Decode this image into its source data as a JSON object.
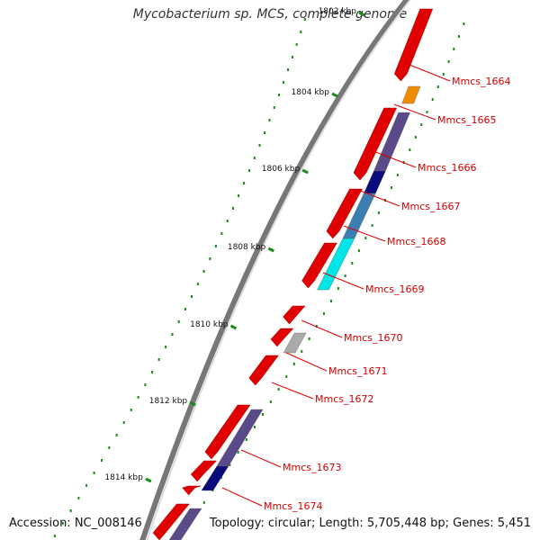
{
  "title": "Mycobacterium sp. MCS, complete genome",
  "footer": {
    "accession": "Accession: NC_008146",
    "summary": "Topology: circular; Length: 5,705,448 bp; Genes: 5,451"
  },
  "ruler": [
    {
      "label": "1802 kbp"
    },
    {
      "label": "1804 kbp"
    },
    {
      "label": "1806 kbp"
    },
    {
      "label": "1808 kbp"
    },
    {
      "label": "1810 kbp"
    },
    {
      "label": "1812 kbp"
    },
    {
      "label": "1814 kbp"
    }
  ],
  "genes": [
    {
      "label": "Mmcs_1664",
      "color": "#e00000",
      "label_color": "#d40000"
    },
    {
      "label": "Mmcs_1665",
      "color": "#f08c00",
      "label_color": "#d40000"
    },
    {
      "label": "Mmcs_1666",
      "color": "#5a4a8a",
      "label_color": "#d40000"
    },
    {
      "label": "Mmcs_1667",
      "color": "#0a0a7a",
      "label_color": "#d40000"
    },
    {
      "label": "Mmcs_1668",
      "color": "#3a7fb0",
      "label_color": "#d40000"
    },
    {
      "label": "Mmcs_1669",
      "color": "#00e6e6",
      "label_color": "#d40000"
    },
    {
      "label": "Mmcs_1670",
      "color": "#e00000",
      "label_color": "#d40000"
    },
    {
      "label": "Mmcs_1671",
      "color": "#aaaaaa",
      "label_color": "#d40000"
    },
    {
      "label": "Mmcs_1672",
      "color": "#e00000",
      "label_color": "#d40000"
    },
    {
      "label": "Mmcs_1673",
      "color": "#5a4a8a",
      "label_color": "#d40000"
    },
    {
      "label": "Mmcs_1674",
      "color": "#0a0a7a",
      "label_color": "#d40000"
    }
  ],
  "colors": {
    "backbone": "#888888",
    "gc_dots": "#1a8a1a",
    "label_line": "#e00000",
    "ruler_tick": "#1a8a1a",
    "gene_red": "#e00000"
  }
}
